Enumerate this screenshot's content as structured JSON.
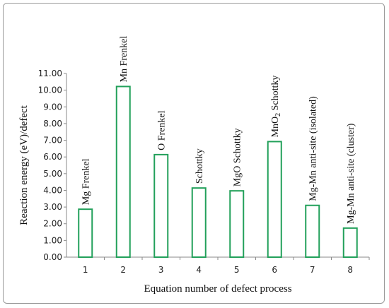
{
  "chart_data": {
    "type": "bar",
    "xlabel": "Equation number of  defect process",
    "ylabel": "Reaction energy (eV)/defect",
    "ylim": [
      0,
      11
    ],
    "ytick_step": 1,
    "ytick_labels": [
      "0.00",
      "1.00",
      "2.00",
      "3.00",
      "4.00",
      "5.00",
      "6.00",
      "7.00",
      "8.00",
      "9.00",
      "10.00",
      "11.00"
    ],
    "categories": [
      "1",
      "2",
      "3",
      "4",
      "5",
      "6",
      "7",
      "8"
    ],
    "values": [
      2.87,
      10.22,
      6.14,
      4.14,
      3.97,
      6.92,
      3.1,
      1.74
    ],
    "bar_labels": [
      "Mg  Frenkel",
      "Mn  Frenkel",
      "O  Frenkel",
      "Schottky",
      "MgO  Schottky",
      "MnO2  Schottky",
      "Mg-Mn anti-site (isolated)",
      "Mg-Mn anti-site (cluster)"
    ],
    "bar_color": "#22a05a",
    "grid": false,
    "legend": "none"
  }
}
